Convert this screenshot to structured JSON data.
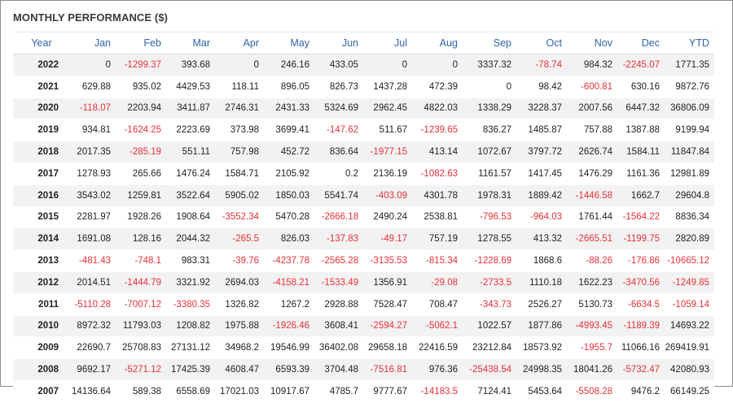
{
  "title": "MONTHLY PERFORMANCE ($)",
  "colors": {
    "header_text": "#2f64a8",
    "negative": "#e8313a",
    "stripe": "#f2f2f2"
  },
  "columns": [
    "Year",
    "Jan",
    "Feb",
    "Mar",
    "Apr",
    "May",
    "Jun",
    "Jul",
    "Aug",
    "Sep",
    "Oct",
    "Nov",
    "Dec",
    "YTD"
  ],
  "rows": [
    {
      "year": "2022",
      "values": [
        "0",
        "-1299.37",
        "393.68",
        "0",
        "246.16",
        "433.05",
        "0",
        "0",
        "3337.32",
        "-78.74",
        "984.32",
        "-2245.07",
        "1771.35"
      ]
    },
    {
      "year": "2021",
      "values": [
        "629.88",
        "935.02",
        "4429.53",
        "118.11",
        "896.05",
        "826.73",
        "1437.28",
        "472.39",
        "0",
        "98.42",
        "-600.81",
        "630.16",
        "9872.76"
      ]
    },
    {
      "year": "2020",
      "values": [
        "-118.07",
        "2203.94",
        "3411.87",
        "2746.31",
        "2431.33",
        "5324.69",
        "2962.45",
        "4822.03",
        "1338.29",
        "3228.37",
        "2007.56",
        "6447.32",
        "36806.09"
      ]
    },
    {
      "year": "2019",
      "values": [
        "934.81",
        "-1624.25",
        "2223.69",
        "373.98",
        "3699.41",
        "-147.62",
        "511.67",
        "-1239.65",
        "836.27",
        "1485.87",
        "757.88",
        "1387.88",
        "9199.94"
      ]
    },
    {
      "year": "2018",
      "values": [
        "2017.35",
        "-285.19",
        "551.11",
        "757.98",
        "452.72",
        "836.64",
        "-1977.15",
        "413.14",
        "1072.67",
        "3797.72",
        "2626.74",
        "1584.11",
        "11847.84"
      ]
    },
    {
      "year": "2017",
      "values": [
        "1278.93",
        "265.66",
        "1476.24",
        "1584.71",
        "2105.92",
        "0.2",
        "2136.19",
        "-1082.63",
        "1161.57",
        "1417.45",
        "1476.29",
        "1161.36",
        "12981.89"
      ]
    },
    {
      "year": "2016",
      "values": [
        "3543.02",
        "1259.81",
        "3522.64",
        "5905.02",
        "1850.03",
        "5541.74",
        "-403.09",
        "4301.78",
        "1978.31",
        "1889.42",
        "-1446.58",
        "1662.7",
        "29604.8"
      ]
    },
    {
      "year": "2015",
      "values": [
        "2281.97",
        "1928.26",
        "1908.64",
        "-3552.34",
        "5470.28",
        "-2666.18",
        "2490.24",
        "2538.81",
        "-796.53",
        "-964.03",
        "1761.44",
        "-1564.22",
        "8836.34"
      ]
    },
    {
      "year": "2014",
      "values": [
        "1691.08",
        "128.16",
        "2044.32",
        "-265.5",
        "826.03",
        "-137.83",
        "-49.17",
        "757.19",
        "1278.55",
        "413.32",
        "-2665.51",
        "-1199.75",
        "2820.89"
      ]
    },
    {
      "year": "2013",
      "values": [
        "-481.43",
        "-748.1",
        "983.31",
        "-39.76",
        "-4237.78",
        "-2565.28",
        "-3135.53",
        "-815.34",
        "-1228.69",
        "1868.6",
        "-88.26",
        "-176.86",
        "-10665.12"
      ]
    },
    {
      "year": "2012",
      "values": [
        "2014.51",
        "-1444.79",
        "3321.92",
        "2694.03",
        "-4158.21",
        "-1533.49",
        "1356.91",
        "-29.08",
        "-2733.5",
        "1110.18",
        "1622.23",
        "-3470.56",
        "-1249.85"
      ]
    },
    {
      "year": "2011",
      "values": [
        "-5110.28",
        "-7007.12",
        "-3380.35",
        "1326.82",
        "1267.2",
        "2928.88",
        "7528.47",
        "708.47",
        "-343.73",
        "2526.27",
        "5130.73",
        "-6634.5",
        "-1059.14"
      ]
    },
    {
      "year": "2010",
      "values": [
        "8972.32",
        "11793.03",
        "1208.82",
        "1975.88",
        "-1926.46",
        "3608.41",
        "-2594.27",
        "-5062.1",
        "1022.57",
        "1877.86",
        "-4993.45",
        "-1189.39",
        "14693.22"
      ]
    },
    {
      "year": "2009",
      "values": [
        "22690.7",
        "25708.83",
        "27131.12",
        "34968.2",
        "19546.99",
        "36402.08",
        "29658.18",
        "22416.59",
        "23212.84",
        "18573.92",
        "-1955.7",
        "11066.16",
        "269419.91"
      ]
    },
    {
      "year": "2008",
      "values": [
        "9692.17",
        "-5271.12",
        "17425.39",
        "4608.47",
        "6593.39",
        "3704.48",
        "-7516.81",
        "976.36",
        "-25438.54",
        "24998.35",
        "18041.26",
        "-5732.47",
        "42080.93"
      ]
    },
    {
      "year": "2007",
      "values": [
        "14136.64",
        "589.38",
        "6558.69",
        "17021.03",
        "10917.67",
        "4785.7",
        "9777.67",
        "-14183.5",
        "7124.41",
        "5453.64",
        "-5508.28",
        "9476.2",
        "66149.25"
      ]
    }
  ]
}
